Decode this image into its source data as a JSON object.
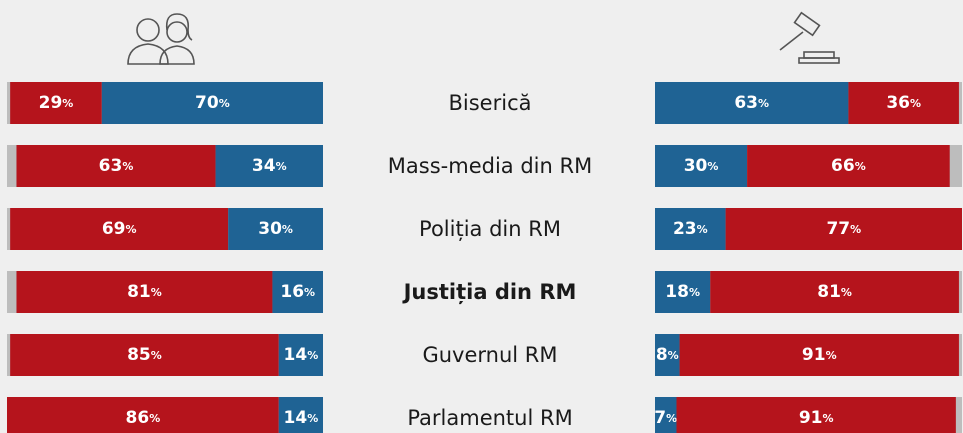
{
  "chart_data": {
    "type": "bar",
    "categories": [
      "Biserică",
      "Mass-media din RM",
      "Poliția din RM",
      "Justiția din RM",
      "Guvernul RM",
      "Parlamentul RM"
    ],
    "highlight": 3,
    "track_color": "#bdbdbd",
    "panels": [
      {
        "align": "right",
        "xlim": [
          0,
          100
        ],
        "series": [
          {
            "color": "#b5141c",
            "values": [
              29,
              63,
              69,
              81,
              85,
              86
            ],
            "value_labels": [
              "29%",
              "63%",
              "69%",
              "81%",
              "85%",
              "86%"
            ]
          },
          {
            "color": "#1f6394",
            "values": [
              70,
              34,
              30,
              16,
              14,
              14
            ],
            "value_labels": [
              "70%",
              "34%",
              "30%",
              "16%",
              "14%",
              "14%"
            ]
          }
        ]
      },
      {
        "align": "left",
        "xlim": [
          0,
          100
        ],
        "series": [
          {
            "color": "#1f6394",
            "values": [
              63,
              30,
              23,
              18,
              8,
              7
            ],
            "value_labels": [
              "63%",
              "30%",
              "23%",
              "18%",
              "8%",
              "7%"
            ]
          },
          {
            "color": "#b5141c",
            "values": [
              36,
              66,
              77,
              81,
              91,
              91
            ],
            "value_labels": [
              "36%",
              "66%",
              "77%",
              "81%",
              "91%",
              "91%"
            ]
          }
        ]
      }
    ]
  }
}
